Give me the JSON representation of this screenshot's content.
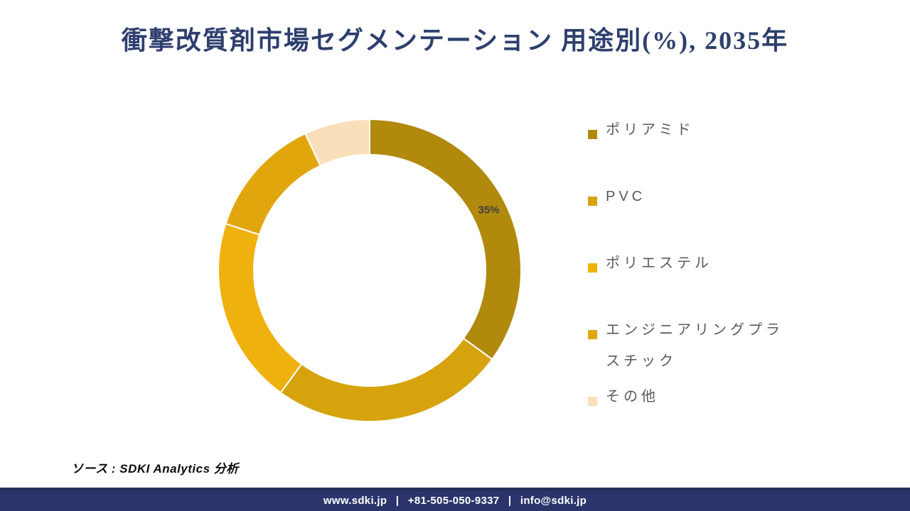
{
  "title": "衝撃改質剤市場セグメンテーション 用途別(%), 2035年",
  "title_color": "#2E3F6E",
  "chart_data": {
    "type": "pie",
    "subtype": "donut",
    "title": "衝撃改質剤市場セグメンテーション 用途別(%), 2035年",
    "unit": "%",
    "start_angle_deg": 0,
    "direction": "clockwise",
    "legend_position": "right",
    "data_label_color": "#404040",
    "segments": [
      {
        "slug": "polyamide",
        "label": "ポリアミド",
        "value": 35,
        "color": "#B0890D",
        "data_label": "35%"
      },
      {
        "slug": "pvc",
        "label": "PVC",
        "value": 25,
        "color": "#D6A30D",
        "data_label": ""
      },
      {
        "slug": "polyester",
        "label": "ポリエステル",
        "value": 20,
        "color": "#EFB10D",
        "data_label": ""
      },
      {
        "slug": "engineering-plastics",
        "label": "エンジニアリングプラスチック",
        "value": 13,
        "color": "#E2A60D",
        "data_label": ""
      },
      {
        "slug": "others",
        "label": "その他",
        "value": 7,
        "color": "#F9DFB9",
        "data_label": ""
      }
    ]
  },
  "source": {
    "text": "ソース : SDKI Analytics 分析"
  },
  "footer": {
    "website": "www.sdki.jp",
    "phone": "+81-505-050-9337",
    "email": "info@sdki.jp",
    "separator": "|",
    "bg_color": "#2B356B"
  }
}
